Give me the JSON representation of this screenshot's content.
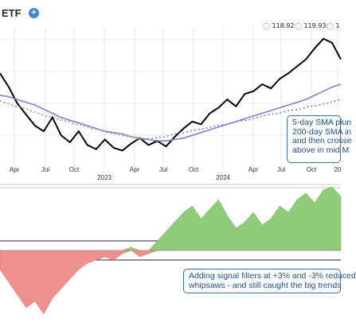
{
  "header": {
    "title": "ETF",
    "settings_icon": "gear-icon",
    "readouts": [
      "118.92",
      "119.93",
      "1"
    ]
  },
  "annotations": {
    "top": "5-day SMA plun\n200-day SMA in\nand then crosse\nabove in mid M",
    "bottom": "Adding signal filters at +3% and -3% reduced\nwhipsaws - and still caught the big trends"
  },
  "chart_data": [
    {
      "type": "line",
      "panel": "price",
      "x_tick_labels": [
        "Apr",
        "Jul",
        "Oct",
        "2023",
        "Apr",
        "Jul",
        "Oct",
        "2024",
        "Apr",
        "Jul",
        "Oct",
        "20"
      ],
      "series": [
        {
          "role": "price",
          "color": "#000000",
          "values": [
            150,
            140,
            128,
            120,
            112,
            108,
            118,
            105,
            100,
            108,
            98,
            95,
            102,
            96,
            94,
            99,
            103,
            98,
            101,
            97,
            104,
            110,
            115,
            113,
            121,
            125,
            131,
            126,
            135,
            137,
            142,
            139,
            146,
            150,
            155,
            160,
            168,
            175,
            172,
            160
          ]
        },
        {
          "role": "sma-long",
          "color": "#7f7fcf",
          "values": [
            134,
            133,
            131,
            129,
            127,
            124,
            121,
            118,
            116,
            114,
            112,
            110,
            108,
            107,
            106,
            104,
            103,
            102,
            101,
            101,
            102,
            103,
            105,
            107,
            109,
            111,
            113,
            115,
            117,
            119,
            121,
            123,
            125,
            127,
            129,
            131,
            134,
            137,
            140,
            142
          ]
        },
        {
          "role": "sma-short-dotted",
          "color": "#e4857a",
          "values": [
            130,
            128,
            126,
            125,
            123,
            121,
            119,
            118,
            116,
            115,
            113,
            112,
            110,
            109,
            107,
            106,
            105,
            104,
            103,
            102
          ]
        },
        {
          "role": "sma-short-dotted",
          "color": "#6d89c9",
          "values": [
            102,
            103,
            104,
            106,
            107,
            109,
            110,
            112,
            113,
            115,
            116,
            118,
            120,
            121,
            123,
            124,
            126,
            127,
            129,
            131
          ]
        }
      ]
    },
    {
      "type": "area",
      "panel": "indicator",
      "thresholds": [
        3,
        -3
      ],
      "positive_color": "#8fcb78",
      "negative_color": "#ef8f8f",
      "values": [
        -6,
        -10,
        -14,
        -18,
        -16,
        -20,
        -15,
        -12,
        -9,
        -6,
        -4,
        -3,
        -2,
        -3,
        -1,
        1,
        -2,
        -1,
        3,
        6,
        9,
        12,
        14,
        10,
        13,
        16,
        11,
        7,
        9,
        12,
        8,
        10,
        14,
        12,
        16,
        18,
        15,
        19,
        20,
        17
      ]
    }
  ]
}
